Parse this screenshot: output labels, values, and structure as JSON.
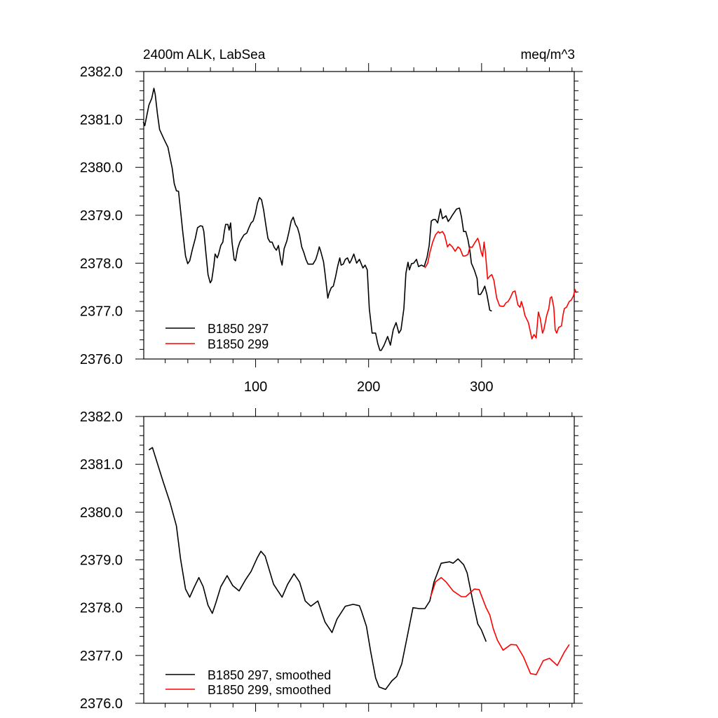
{
  "chart_data": [
    {
      "type": "line",
      "title_left": "2400m ALK, LabSea",
      "title_right": "meq/m^3",
      "xlabel": "",
      "ylabel": "",
      "xlim": [
        1,
        382
      ],
      "ylim": [
        2376.0,
        2382.0
      ],
      "xticks": [
        100,
        200,
        300
      ],
      "xtick_labels": [
        "100",
        "200",
        "300"
      ],
      "yticks": [
        2376.0,
        2377.0,
        2378.0,
        2379.0,
        2380.0,
        2381.0,
        2382.0
      ],
      "ytick_labels": [
        "2376.0",
        "2377.0",
        "2378.0",
        "2379.0",
        "2380.0",
        "2381.0",
        "2382.0"
      ],
      "legend_position": "bottom-left",
      "grid": false,
      "series": [
        {
          "name": "B1850 297",
          "color": "#000000",
          "x": [
            0.6,
            1.9,
            5.6,
            8.1,
            10.0,
            11.2,
            13.1,
            15.0,
            18.7,
            22.4,
            24.3,
            26.2,
            28.0,
            29.9,
            31.8,
            33.6,
            35.5,
            38.0,
            39.9,
            41.7,
            44.2,
            46.7,
            48.6,
            51.1,
            53.0,
            54.2,
            56.1,
            57.9,
            59.8,
            61.1,
            62.9,
            64.2,
            66.0,
            67.3,
            69.2,
            71.0,
            72.3,
            73.5,
            75.4,
            76.6,
            77.9,
            79.1,
            81.0,
            82.2,
            84.1,
            86.0,
            87.9,
            89.7,
            92.2,
            94.1,
            96.0,
            97.8,
            99.7,
            101.6,
            103.4,
            105.3,
            107.2,
            109.0,
            110.9,
            112.8,
            114.6,
            116.5,
            118.4,
            120.2,
            122.1,
            123.4,
            125.2,
            127.7,
            129.6,
            131.5,
            133.3,
            135.2,
            137.1,
            138.9,
            140.8,
            142.7,
            144.5,
            146.4,
            150.8,
            153.3,
            155.1,
            156.4,
            157.6,
            160.1,
            161.4,
            163.9,
            165.1,
            167.0,
            168.8,
            170.7,
            172.6,
            174.5,
            175.7,
            177.6,
            179.4,
            181.3,
            183.2,
            184.4,
            186.9,
            189.4,
            191.9,
            195.0,
            196.9,
            198.8,
            200.6,
            203.1,
            206.2,
            208.1,
            210.0,
            211.2,
            213.7,
            216.8,
            219.3,
            221.8,
            224.3,
            226.8,
            228.7,
            231.2,
            233.0,
            234.9,
            236.1,
            238.0,
            239.9,
            242.4,
            244.2,
            246.7,
            249.2,
            251.7,
            253.6,
            255.5,
            257.3,
            259.2,
            261.1,
            263.6,
            265.4,
            268.5,
            270.4,
            272.3,
            274.1,
            277.9,
            280.4,
            282.2,
            284.1,
            286.0,
            287.9,
            289.7,
            291.0,
            293.5,
            296.0,
            297.2,
            299.1,
            300.9,
            302.8,
            304.7,
            307.2,
            309.0
          ],
          "y": [
            2380.95,
            2380.87,
            2381.3,
            2381.44,
            2381.65,
            2381.52,
            2381.12,
            2380.79,
            2380.6,
            2380.42,
            2380.2,
            2379.98,
            2379.66,
            2379.51,
            2379.5,
            2379.1,
            2378.66,
            2378.15,
            2377.99,
            2378.05,
            2378.3,
            2378.52,
            2378.74,
            2378.78,
            2378.77,
            2378.66,
            2378.19,
            2377.76,
            2377.59,
            2377.64,
            2377.93,
            2378.19,
            2378.11,
            2378.19,
            2378.37,
            2378.44,
            2378.66,
            2378.81,
            2378.81,
            2378.69,
            2378.84,
            2378.44,
            2378.08,
            2378.05,
            2378.3,
            2378.44,
            2378.52,
            2378.59,
            2378.63,
            2378.74,
            2378.84,
            2378.88,
            2379.03,
            2379.25,
            2379.37,
            2379.32,
            2379.1,
            2378.81,
            2378.52,
            2378.44,
            2378.44,
            2378.33,
            2378.27,
            2378.37,
            2378.08,
            2377.96,
            2378.3,
            2378.47,
            2378.66,
            2378.88,
            2378.96,
            2378.81,
            2378.74,
            2378.59,
            2378.34,
            2378.22,
            2378.08,
            2377.98,
            2377.98,
            2378.08,
            2378.22,
            2378.34,
            2378.25,
            2378.03,
            2377.79,
            2377.27,
            2377.38,
            2377.49,
            2377.52,
            2377.71,
            2377.93,
            2378.11,
            2377.96,
            2377.98,
            2378.08,
            2378.11,
            2378.0,
            2378.05,
            2378.19,
            2378.0,
            2378.08,
            2377.9,
            2377.96,
            2377.86,
            2377.05,
            2376.54,
            2376.54,
            2376.32,
            2376.18,
            2376.18,
            2376.29,
            2376.47,
            2376.29,
            2376.61,
            2376.76,
            2376.54,
            2376.61,
            2377.05,
            2377.79,
            2378.02,
            2377.86,
            2377.99,
            2378.0,
            2378.08,
            2377.93,
            2377.96,
            2377.93,
            2378.12,
            2378.37,
            2378.88,
            2378.91,
            2378.91,
            2378.84,
            2379.13,
            2378.93,
            2378.99,
            2378.87,
            2378.93,
            2379.0,
            2379.13,
            2379.15,
            2378.96,
            2378.66,
            2378.66,
            2378.49,
            2378.25,
            2378.0,
            2377.86,
            2377.68,
            2377.35,
            2377.35,
            2377.42,
            2377.52,
            2377.35,
            2377.02,
            2377.0
          ]
        },
        {
          "name": "B1850 299",
          "color": "#ff0000",
          "x": [
            249.8,
            252.3,
            254.2,
            256.7,
            259.2,
            261.7,
            262.9,
            265.4,
            267.3,
            269.8,
            271.7,
            274.1,
            276.6,
            279.1,
            281.0,
            283.5,
            285.4,
            287.9,
            289.7,
            291.6,
            294.1,
            296.6,
            297.8,
            299.7,
            300.9,
            302.2,
            303.4,
            305.3,
            307.2,
            309.0,
            310.9,
            313.4,
            315.9,
            317.8,
            319.6,
            321.5,
            323.4,
            325.2,
            327.7,
            329.6,
            332.1,
            334.0,
            335.2,
            337.1,
            338.3,
            341.4,
            344.5,
            346.4,
            348.3,
            350.2,
            352.0,
            353.9,
            355.1,
            357.6,
            359.5,
            360.7,
            362.0,
            363.9,
            365.1,
            366.4,
            368.2,
            370.7,
            372.0,
            373.2,
            375.1,
            377.6,
            379.4,
            381.3,
            382.6,
            383.8
          ],
          "y": [
            2377.9,
            2378.0,
            2378.22,
            2378.44,
            2378.59,
            2378.66,
            2378.63,
            2378.66,
            2378.58,
            2378.34,
            2378.4,
            2378.34,
            2378.25,
            2378.34,
            2378.3,
            2378.15,
            2378.15,
            2378.18,
            2378.34,
            2378.33,
            2378.43,
            2378.52,
            2378.43,
            2378.22,
            2378.14,
            2378.44,
            2378.22,
            2377.67,
            2377.73,
            2377.76,
            2377.64,
            2377.27,
            2377.11,
            2377.1,
            2377.1,
            2377.17,
            2377.2,
            2377.27,
            2377.4,
            2377.42,
            2377.13,
            2377.08,
            2377.2,
            2377.05,
            2376.91,
            2376.76,
            2376.42,
            2376.51,
            2376.44,
            2376.98,
            2376.83,
            2376.54,
            2376.61,
            2376.91,
            2377.05,
            2377.27,
            2377.3,
            2377.08,
            2376.61,
            2376.54,
            2376.66,
            2376.69,
            2376.91,
            2377.05,
            2377.08,
            2377.2,
            2377.23,
            2377.32,
            2377.45,
            2377.38
          ]
        }
      ]
    },
    {
      "type": "line",
      "xlabel": "",
      "ylabel": "",
      "xlim": [
        1,
        382
      ],
      "ylim": [
        2376.0,
        2382.0
      ],
      "xticks": [
        100,
        200,
        300
      ],
      "yticks": [
        2376.0,
        2377.0,
        2378.0,
        2379.0,
        2380.0,
        2381.0,
        2382.0
      ],
      "ytick_labels": [
        "2376.0",
        "2377.0",
        "2378.0",
        "2379.0",
        "2380.0",
        "2381.0",
        "2382.0"
      ],
      "legend_position": "bottom-left",
      "grid": false,
      "series": [
        {
          "name": "B1850 297, smoothed",
          "color": "#000000",
          "x": [
            5.6,
            8.7,
            18.1,
            24.3,
            29.9,
            33.6,
            38.0,
            41.7,
            45.5,
            49.8,
            53.6,
            57.9,
            61.7,
            64.8,
            69.2,
            74.8,
            79.8,
            85.4,
            91.0,
            96.0,
            101.6,
            104.7,
            108.4,
            115.9,
            123.4,
            128.3,
            134.0,
            138.9,
            143.9,
            148.9,
            155.1,
            161.4,
            167.6,
            172.0,
            179.4,
            186.3,
            191.9,
            193.8,
            198.1,
            201.9,
            206.2,
            209.3,
            215.0,
            220.6,
            224.9,
            229.3,
            234.3,
            239.3,
            244.9,
            249.8,
            254.2,
            257.9,
            264.2,
            271.7,
            274.8,
            279.1,
            284.1,
            287.2,
            292.2,
            296.6,
            299.7,
            304.0
          ],
          "y": [
            2381.3,
            2381.35,
            2380.64,
            2380.2,
            2379.71,
            2379.02,
            2378.39,
            2378.22,
            2378.42,
            2378.63,
            2378.44,
            2378.05,
            2377.88,
            2378.1,
            2378.44,
            2378.67,
            2378.46,
            2378.35,
            2378.58,
            2378.76,
            2379.05,
            2379.18,
            2379.08,
            2378.49,
            2378.22,
            2378.49,
            2378.71,
            2378.54,
            2378.14,
            2378.03,
            2378.14,
            2377.7,
            2377.48,
            2377.76,
            2378.03,
            2378.07,
            2378.04,
            2377.92,
            2377.61,
            2377.07,
            2376.53,
            2376.34,
            2376.29,
            2376.47,
            2376.56,
            2376.82,
            2377.41,
            2378.0,
            2377.98,
            2377.98,
            2378.14,
            2378.54,
            2378.93,
            2378.96,
            2378.93,
            2379.02,
            2378.9,
            2378.73,
            2378.14,
            2377.66,
            2377.54,
            2377.29
          ]
        },
        {
          "name": "B1850 299, smoothed",
          "color": "#ff0000",
          "x": [
            254.8,
            259.2,
            264.2,
            268.5,
            274.8,
            282.2,
            286.0,
            293.5,
            297.8,
            304.0,
            307.2,
            310.3,
            314.0,
            319.0,
            325.9,
            330.8,
            337.1,
            343.3,
            348.3,
            354.5,
            360.1,
            367.0,
            373.2,
            377.6
          ],
          "y": [
            2378.22,
            2378.54,
            2378.63,
            2378.54,
            2378.35,
            2378.23,
            2378.23,
            2378.39,
            2378.38,
            2378.0,
            2377.85,
            2377.56,
            2377.32,
            2377.11,
            2377.23,
            2377.22,
            2376.97,
            2376.62,
            2376.6,
            2376.89,
            2376.94,
            2376.79,
            2377.07,
            2377.23
          ]
        }
      ]
    }
  ]
}
